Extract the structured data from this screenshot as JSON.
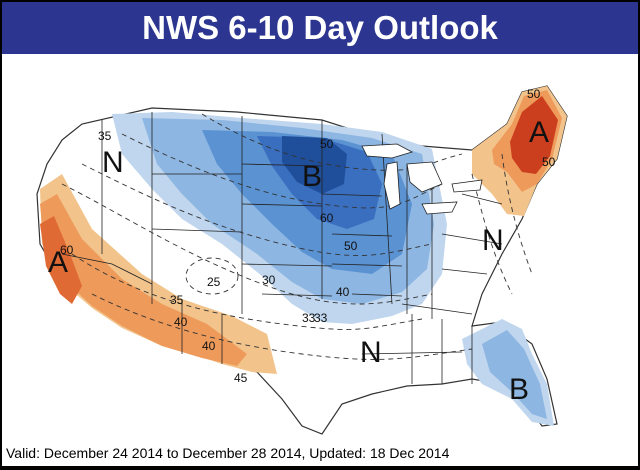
{
  "title": "NWS 6-10 Day Outlook",
  "footer": {
    "text": "Valid: December 24 2014 to December 28 2014, Updated: 18 Dec 2014"
  },
  "colors": {
    "title_bg": "#2c3590",
    "below_light": "#bfd6ee",
    "below_mid": "#8db6e2",
    "below_strong": "#5a92d2",
    "below_darker": "#3a6fc0",
    "below_darkest": "#1f4f9a",
    "above_light": "#f2c48c",
    "above_mid": "#ee9a5a",
    "above_strong": "#e06a34",
    "above_darkest": "#cc3f1e"
  },
  "map": {
    "letters": [
      "N",
      "B",
      "N",
      "N",
      "A",
      "A",
      "B"
    ],
    "contour_labels": [
      "35",
      "50",
      "60",
      "50",
      "40",
      "33",
      "25",
      "30",
      "35",
      "40",
      "40",
      "45",
      "60",
      "50",
      "50",
      "33"
    ]
  }
}
